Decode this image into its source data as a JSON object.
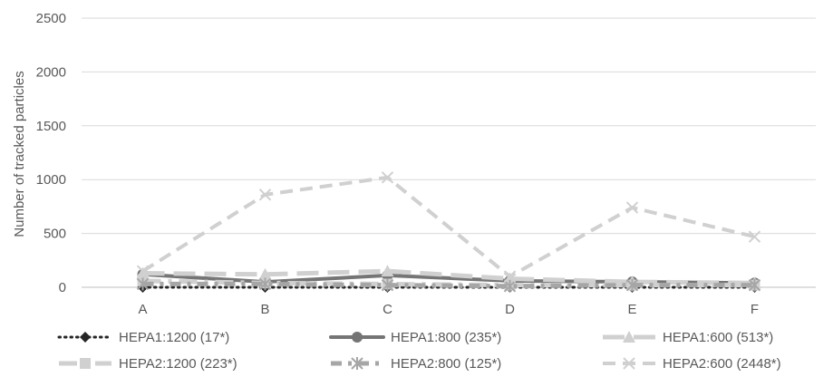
{
  "chart_data": {
    "type": "line",
    "title": "",
    "xlabel": "",
    "ylabel": "Number of tracked particles",
    "categories": [
      "A",
      "B",
      "C",
      "D",
      "E",
      "F"
    ],
    "ylim": [
      0,
      2500
    ],
    "yticks": [
      0,
      500,
      1000,
      1500,
      2000,
      2500
    ],
    "grid": true,
    "legend_position": "bottom",
    "series": [
      {
        "name": "HEPA1:1200 (17*)",
        "values": [
          0,
          0,
          0,
          0,
          0,
          0
        ],
        "color": "#262626",
        "style": "dotted",
        "marker": "diamond"
      },
      {
        "name": "HEPA1:800 (235*)",
        "values": [
          120,
          50,
          110,
          60,
          50,
          40
        ],
        "color": "#757575",
        "style": "solid",
        "marker": "circle"
      },
      {
        "name": "HEPA1:600 (513*)",
        "values": [
          130,
          120,
          150,
          80,
          50,
          40
        ],
        "color": "#d0d0d0",
        "style": "longdash",
        "marker": "triangle"
      },
      {
        "name": "HEPA2:1200 (223*)",
        "values": [
          60,
          40,
          30,
          20,
          20,
          20
        ],
        "color": "#d0d0d0",
        "style": "longdashdot",
        "marker": "square"
      },
      {
        "name": "HEPA2:800 (125*)",
        "values": [
          30,
          30,
          20,
          10,
          20,
          20
        ],
        "color": "#a6a6a6",
        "style": "dashdot",
        "marker": "star"
      },
      {
        "name": "HEPA2:600 (2448*)",
        "values": [
          150,
          860,
          1020,
          100,
          740,
          470
        ],
        "color": "#d0d0d0",
        "style": "dash",
        "marker": "x"
      }
    ]
  }
}
